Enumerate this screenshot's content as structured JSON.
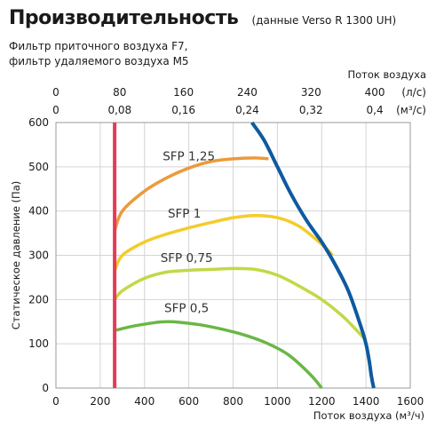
{
  "header": {
    "title": "Производительность",
    "note": "(данные Verso R 1300 UH)",
    "line1": "Фильтр приточного воздуха F7,",
    "line2": "фильтр удаляемого воздуха M5"
  },
  "chart_data": {
    "type": "line",
    "xlabel": "Поток воздуха (м³/ч)",
    "ylabel": "Статическое давление (Па)",
    "top_axis_title": "Поток воздуха",
    "xlim": [
      0,
      1600
    ],
    "ylim": [
      0,
      600
    ],
    "x_ticks": [
      "0",
      "200",
      "400",
      "600",
      "800",
      "1000",
      "1200",
      "1400",
      "1600"
    ],
    "y_ticks": [
      "0",
      "100",
      "200",
      "300",
      "400",
      "500",
      "600"
    ],
    "top_ls_ticks": [
      "0",
      "80",
      "160",
      "240",
      "320",
      "400"
    ],
    "top_ls_unit": "(л/с)",
    "top_m3s_ticks": [
      "0",
      "0,08",
      "0,16",
      "0,24",
      "0,32",
      "0,4"
    ],
    "top_m3s_unit": "(м³/с)",
    "grid": true,
    "series": [
      {
        "name": "SFP 1,25",
        "color": "#ec9a3c",
        "x": [
          265,
          300,
          400,
          500,
          600,
          700,
          800,
          900,
          960
        ],
        "y": [
          355,
          400,
          445,
          475,
          497,
          512,
          518,
          520,
          518
        ]
      },
      {
        "name": "SFP 1",
        "color": "#f4cc2a",
        "x": [
          265,
          300,
          400,
          500,
          600,
          700,
          800,
          900,
          1000,
          1100,
          1200,
          1250
        ],
        "y": [
          265,
          300,
          330,
          348,
          362,
          374,
          385,
          390,
          385,
          365,
          325,
          300
        ]
      },
      {
        "name": "SFP 0,75",
        "color": "#c4d747",
        "x": [
          265,
          300,
          400,
          500,
          600,
          700,
          800,
          900,
          1000,
          1100,
          1200,
          1300,
          1400
        ],
        "y": [
          200,
          220,
          248,
          262,
          266,
          268,
          270,
          268,
          255,
          230,
          200,
          160,
          108
        ]
      },
      {
        "name": "SFP 0,5",
        "color": "#6ab745",
        "x": [
          265,
          350,
          450,
          500,
          550,
          650,
          750,
          850,
          950,
          1050,
          1150,
          1200
        ],
        "y": [
          130,
          140,
          148,
          150,
          149,
          143,
          133,
          120,
          102,
          75,
          30,
          0
        ]
      },
      {
        "name": "",
        "color": "#0d5aa0",
        "x": [
          885,
          940,
          1000,
          1060,
          1130,
          1200,
          1260,
          1320,
          1370,
          1400,
          1415,
          1425,
          1435
        ],
        "y": [
          600,
          560,
          500,
          440,
          380,
          330,
          280,
          220,
          150,
          100,
          60,
          25,
          0
        ]
      },
      {
        "name": "",
        "color": "#e83a55",
        "x": [
          265,
          265
        ],
        "y": [
          0,
          600
        ]
      }
    ]
  }
}
